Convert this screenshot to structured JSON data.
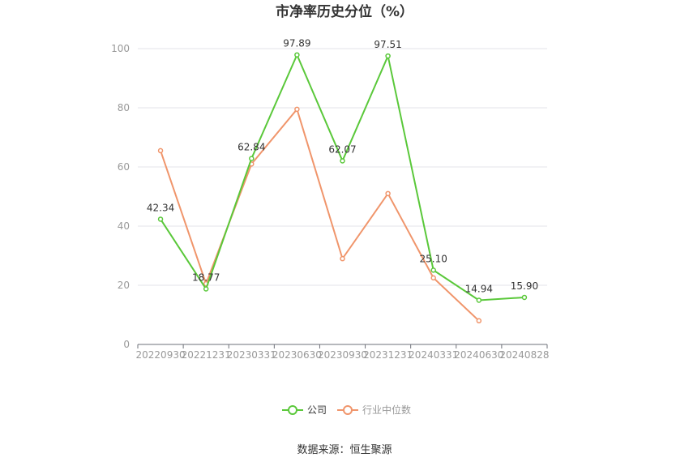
{
  "chart_data": {
    "type": "line",
    "title": "市净率历史分位（%）",
    "categories": [
      "20220930",
      "20221231",
      "20230331",
      "20230630",
      "20230930",
      "20231231",
      "20240331",
      "20240630",
      "20240828"
    ],
    "ylim": [
      0,
      100
    ],
    "yticks": [
      0,
      20,
      40,
      60,
      80,
      100
    ],
    "grid": true,
    "legend_position": "bottom",
    "series": [
      {
        "name": "公司",
        "color": "#5ac83a",
        "values": [
          42.34,
          18.77,
          62.84,
          97.89,
          62.07,
          97.51,
          25.1,
          14.94,
          15.9
        ],
        "labels": [
          "42.34",
          "18.77",
          "62.84",
          "97.89",
          "62.07",
          "97.51",
          "25.10",
          "14.94",
          "15.90"
        ]
      },
      {
        "name": "行业中位数",
        "color": "#f0956b",
        "values": [
          65.5,
          20.5,
          61.0,
          79.5,
          29.0,
          51.0,
          22.5,
          8.0,
          null
        ]
      }
    ]
  },
  "source": "数据来源：恒生聚源"
}
